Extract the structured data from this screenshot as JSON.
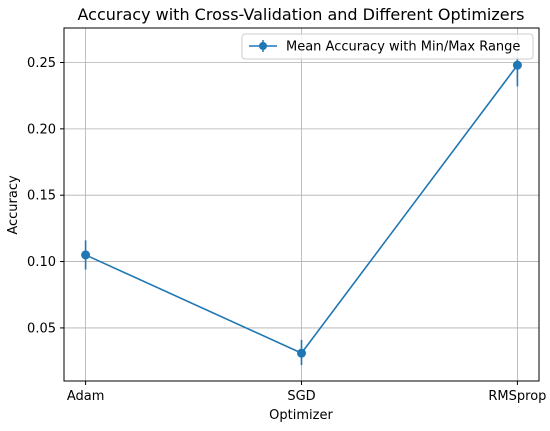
{
  "chart_data": {
    "type": "line",
    "title": "Accuracy with Cross-Validation and Different Optimizers",
    "xlabel": "Optimizer",
    "ylabel": "Accuracy",
    "categories": [
      "Adam",
      "SGD",
      "RMSprop"
    ],
    "series": [
      {
        "name": "Mean Accuracy with Min/Max Range",
        "values": [
          0.105,
          0.031,
          0.248
        ],
        "min": [
          0.094,
          0.022,
          0.232
        ],
        "max": [
          0.116,
          0.041,
          0.254
        ],
        "color": "#1f77b4",
        "marker": "circle"
      }
    ],
    "ylim": [
      0.01,
      0.276
    ],
    "yticks": [
      0.05,
      0.1,
      0.15,
      0.2,
      0.25
    ],
    "ytick_labels": [
      "0.05",
      "0.10",
      "0.15",
      "0.20",
      "0.25"
    ],
    "grid": true,
    "legend_position": "top-right"
  }
}
